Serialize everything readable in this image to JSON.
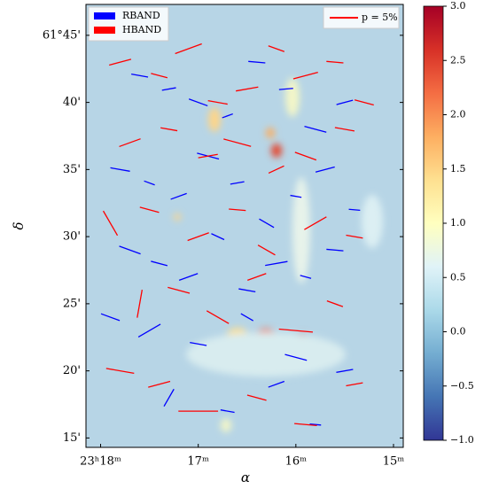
{
  "chart_data": {
    "type": "quiver",
    "xlabel": "α",
    "ylabel": "δ",
    "xlim": [
      18.15,
      14.9
    ],
    "ylim": [
      14.3,
      47.3
    ],
    "xticks": [
      {
        "value": 18,
        "label": "23ʰ18ᵐ"
      },
      {
        "value": 17,
        "label": "17ᵐ"
      },
      {
        "value": 16,
        "label": "16ᵐ"
      },
      {
        "value": 15,
        "label": "15ᵐ"
      }
    ],
    "yticks": [
      {
        "value": 45,
        "label": "61°45'"
      },
      {
        "value": 40,
        "label": "40'"
      },
      {
        "value": 35,
        "label": "35'"
      },
      {
        "value": 30,
        "label": "30'"
      },
      {
        "value": 25,
        "label": "25'"
      },
      {
        "value": 20,
        "label": "20'"
      },
      {
        "value": 15,
        "label": "15'"
      }
    ],
    "clim": [
      -1.0,
      3.0
    ],
    "cticks": [
      {
        "value": -1,
        "label": "−1.0"
      },
      {
        "value": -0.5,
        "label": "−0.5"
      },
      {
        "value": 0,
        "label": "0.0"
      },
      {
        "value": 0.5,
        "label": "0.5"
      },
      {
        "value": 1,
        "label": "1.0"
      },
      {
        "value": 1.5,
        "label": "1.5"
      },
      {
        "value": 2,
        "label": "2.0"
      },
      {
        "value": 2.5,
        "label": "2.5"
      },
      {
        "value": 3,
        "label": "3.0"
      }
    ],
    "p_scale": {
      "value": 5,
      "label": "p = 5%"
    },
    "series": [
      {
        "name": "RBAND",
        "color": "#0000ff",
        "x": [
          17.6,
          17.3,
          17.0,
          16.7,
          16.4,
          16.1,
          15.8,
          15.5,
          17.8,
          17.5,
          17.2,
          16.9,
          16.6,
          16.3,
          16.0,
          15.7,
          15.4,
          17.7,
          17.4,
          17.1,
          16.8,
          16.5,
          16.2,
          15.9,
          15.6,
          17.9,
          17.5,
          17.0,
          16.5,
          16.0,
          15.5,
          17.3,
          16.7,
          16.2,
          15.8
        ],
        "y": [
          42,
          41,
          40,
          39,
          43,
          41,
          38,
          40,
          35,
          34,
          33,
          36,
          34,
          31,
          33,
          35,
          32,
          29,
          28,
          27,
          30,
          26,
          28,
          27,
          29,
          24,
          23,
          22,
          24,
          21,
          20,
          18,
          17,
          19,
          16
        ],
        "p": [
          3,
          2.5,
          3.5,
          2,
          3,
          2.5,
          4,
          3,
          3.5,
          2,
          3,
          4,
          2.5,
          3,
          2,
          3.5,
          2,
          4,
          3,
          3.5,
          2.5,
          3,
          4,
          2,
          3,
          3.5,
          4.5,
          3,
          2.5,
          4,
          3,
          3.5,
          2.5,
          3,
          2
        ],
        "angle": [
          170,
          10,
          160,
          20,
          175,
          5,
          165,
          15,
          170,
          160,
          20,
          165,
          10,
          150,
          170,
          15,
          175,
          160,
          165,
          20,
          155,
          170,
          10,
          165,
          175,
          160,
          30,
          170,
          150,
          165,
          10,
          60,
          170,
          20,
          175
        ]
      },
      {
        "name": "HBAND",
        "color": "#ff0000",
        "x": [
          17.8,
          17.4,
          17.1,
          16.8,
          16.5,
          16.2,
          15.9,
          15.6,
          15.3,
          17.7,
          17.3,
          16.9,
          16.6,
          16.2,
          15.9,
          15.5,
          17.9,
          17.5,
          17.0,
          16.6,
          16.3,
          15.8,
          15.4,
          17.6,
          17.2,
          16.8,
          16.4,
          16.0,
          15.6,
          17.8,
          17.4,
          17.0,
          16.4,
          15.9,
          15.4
        ],
        "y": [
          43,
          42,
          44,
          40,
          41,
          44,
          42,
          43,
          40,
          37,
          38,
          36,
          37,
          35,
          36,
          38,
          31,
          32,
          30,
          32,
          29,
          31,
          30,
          25,
          26,
          24,
          27,
          23,
          25,
          20,
          19,
          17,
          18,
          16,
          19
        ],
        "p": [
          4,
          3,
          5,
          3.5,
          4,
          3,
          4.5,
          3,
          3.5,
          4,
          3,
          3.5,
          5,
          3,
          4,
          3.5,
          5,
          3.5,
          4,
          3,
          3.5,
          4.5,
          3,
          5,
          4,
          4.5,
          3.5,
          6,
          3,
          5,
          4,
          7,
          3.5,
          4,
          3
        ],
        "angle": [
          15,
          165,
          20,
          170,
          10,
          160,
          15,
          175,
          165,
          20,
          170,
          10,
          165,
          25,
          160,
          170,
          120,
          165,
          20,
          175,
          150,
          30,
          170,
          80,
          165,
          150,
          20,
          175,
          160,
          170,
          15,
          0,
          165,
          175,
          10
        ]
      }
    ]
  }
}
